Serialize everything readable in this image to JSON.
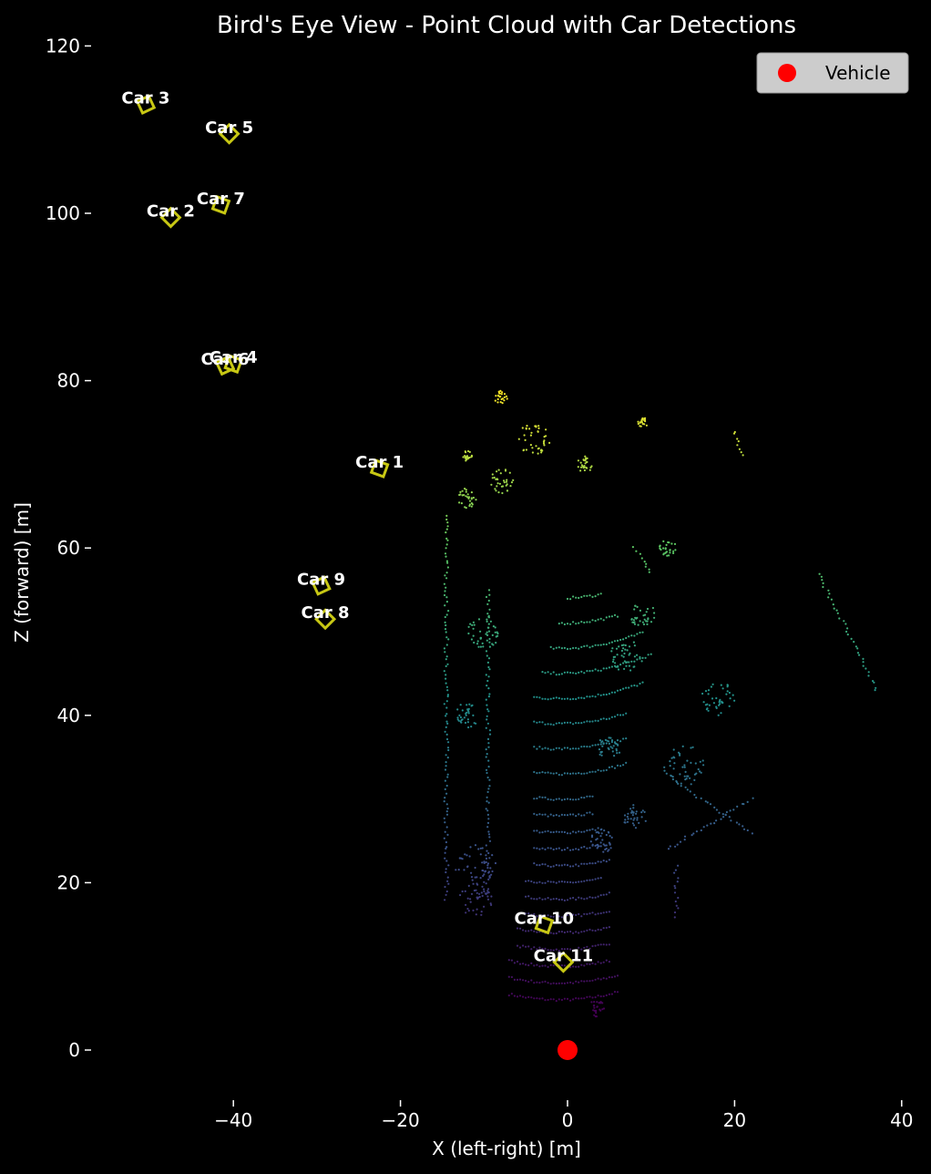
{
  "chart_data": {
    "type": "scatter",
    "title": "Bird's Eye View - Point Cloud with Car Detections",
    "xlabel": "X (left-right) [m]",
    "ylabel": "Z (forward) [m]",
    "xlim": [
      -57,
      40
    ],
    "ylim": [
      -6,
      120
    ],
    "xticks": [
      -40,
      -20,
      0,
      20,
      40
    ],
    "yticks": [
      0,
      20,
      40,
      60,
      80,
      100,
      120
    ],
    "xtick_labels": [
      "−40",
      "−20",
      "0",
      "20",
      "40"
    ],
    "ytick_labels": [
      "0",
      "20",
      "40",
      "60",
      "80",
      "100",
      "120"
    ],
    "grid": false,
    "legend": {
      "placement": "top-right",
      "entries": [
        {
          "label": "Vehicle",
          "color": "#ff0000"
        }
      ]
    },
    "vehicle": {
      "x": 0,
      "z": 0,
      "color": "#ff0000"
    },
    "car_box_color": "#c8c814",
    "cars": [
      {
        "label": "Car 1",
        "x": -22.5,
        "z": 69.5
      },
      {
        "label": "Car 2",
        "x": -47.5,
        "z": 99.5
      },
      {
        "label": "Car 3",
        "x": -50.5,
        "z": 113.0
      },
      {
        "label": "Car 4",
        "x": -40.0,
        "z": 82.0
      },
      {
        "label": "Car 5",
        "x": -40.5,
        "z": 109.5
      },
      {
        "label": "Car 6",
        "x": -41.0,
        "z": 81.8
      },
      {
        "label": "Car 7",
        "x": -41.5,
        "z": 101.0
      },
      {
        "label": "Car 8",
        "x": -29.0,
        "z": 51.5
      },
      {
        "label": "Car 9",
        "x": -29.5,
        "z": 55.5
      },
      {
        "label": "Car 10",
        "x": -2.8,
        "z": 15.0
      },
      {
        "label": "Car 11",
        "x": -0.5,
        "z": 10.5
      }
    ],
    "point_cloud": {
      "colormap": "viridis",
      "color_range_z": [
        5,
        79
      ],
      "ground_arcs": [
        {
          "z": 6,
          "x0": -7,
          "x1": 6
        },
        {
          "z": 8,
          "x0": -7,
          "x1": 6
        },
        {
          "z": 10,
          "x0": -7,
          "x1": 5
        },
        {
          "z": 12,
          "x0": -6,
          "x1": 5
        },
        {
          "z": 14,
          "x0": -6,
          "x1": 5
        },
        {
          "z": 16,
          "x0": -5,
          "x1": 5
        },
        {
          "z": 18,
          "x0": -5,
          "x1": 5
        },
        {
          "z": 20,
          "x0": -5,
          "x1": 4
        },
        {
          "z": 22,
          "x0": -4,
          "x1": 5
        },
        {
          "z": 24,
          "x0": -4,
          "x1": 5
        },
        {
          "z": 26,
          "x0": -4,
          "x1": 4
        },
        {
          "z": 28,
          "x0": -4,
          "x1": 3
        },
        {
          "z": 30,
          "x0": -4,
          "x1": 3
        },
        {
          "z": 33,
          "x0": -4,
          "x1": 7
        },
        {
          "z": 36,
          "x0": -4,
          "x1": 7
        },
        {
          "z": 39,
          "x0": -4,
          "x1": 7
        },
        {
          "z": 42,
          "x0": -4,
          "x1": 9
        },
        {
          "z": 45,
          "x0": -3,
          "x1": 10
        },
        {
          "z": 48,
          "x0": -2,
          "x1": 9
        },
        {
          "z": 51,
          "x0": -1,
          "x1": 6
        },
        {
          "z": 54,
          "x0": 0,
          "x1": 4
        }
      ],
      "walls": [
        {
          "x0": -14.5,
          "z0": 18,
          "x1": -14.5,
          "z1": 64
        },
        {
          "x0": -9.5,
          "z0": 18,
          "x1": -9.5,
          "z1": 55
        },
        {
          "x0": 13,
          "z0": 16,
          "x1": 13,
          "z1": 22
        },
        {
          "x0": 12,
          "z0": 24,
          "x1": 22,
          "z1": 30
        },
        {
          "x0": 13,
          "z0": 32,
          "x1": 22,
          "z1": 26
        },
        {
          "x0": 30,
          "z0": 57,
          "x1": 37,
          "z1": 43
        },
        {
          "x0": 20,
          "z0": 74,
          "x1": 21,
          "z1": 71
        },
        {
          "x0": 8,
          "z0": 60,
          "x1": 10,
          "z1": 57
        }
      ],
      "clusters": [
        {
          "x": -12,
          "z": 66,
          "r": 1.2
        },
        {
          "x": -8,
          "z": 78,
          "r": 0.8
        },
        {
          "x": -8,
          "z": 68,
          "r": 1.5
        },
        {
          "x": 2,
          "z": 70,
          "r": 1.0
        },
        {
          "x": 9,
          "z": 75,
          "r": 0.6
        },
        {
          "x": -12,
          "z": 71,
          "r": 0.6
        },
        {
          "x": -4,
          "z": 73,
          "r": 2.0
        },
        {
          "x": 12,
          "z": 60,
          "r": 1.0
        },
        {
          "x": 18,
          "z": 42,
          "r": 2.0
        },
        {
          "x": 14,
          "z": 34,
          "r": 2.5
        },
        {
          "x": -11,
          "z": 22,
          "r": 2.5
        },
        {
          "x": -11,
          "z": 18,
          "r": 2.0
        },
        {
          "x": 4,
          "z": 25,
          "r": 1.5
        },
        {
          "x": 3.5,
          "z": 5,
          "r": 1.0
        },
        {
          "x": 7,
          "z": 47,
          "r": 2.0
        },
        {
          "x": -12,
          "z": 40,
          "r": 1.5
        },
        {
          "x": -10,
          "z": 50,
          "r": 2.0
        },
        {
          "x": 9,
          "z": 52,
          "r": 1.5
        },
        {
          "x": 5,
          "z": 36,
          "r": 1.5
        },
        {
          "x": 8,
          "z": 28,
          "r": 1.5
        }
      ]
    }
  }
}
